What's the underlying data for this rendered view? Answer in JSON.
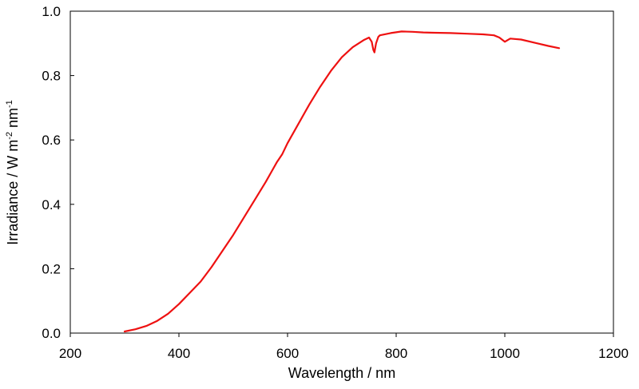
{
  "chart_data": {
    "type": "line",
    "title": "",
    "xlabel": "Wavelength / nm",
    "ylabel": {
      "prefix": "Irradiance / W m",
      "exp1": "-2",
      "middle": " nm",
      "exp2": "-1"
    },
    "xlim": [
      200,
      1200
    ],
    "ylim": [
      0,
      1.0
    ],
    "xticks": [
      {
        "value": 200,
        "label": "200"
      },
      {
        "value": 400,
        "label": "400"
      },
      {
        "value": 600,
        "label": "600"
      },
      {
        "value": 800,
        "label": "800"
      },
      {
        "value": 1000,
        "label": "1000"
      },
      {
        "value": 1200,
        "label": "1200"
      }
    ],
    "yticks": [
      {
        "value": 0.0,
        "label": "0.0"
      },
      {
        "value": 0.2,
        "label": "0.2"
      },
      {
        "value": 0.4,
        "label": "0.4"
      },
      {
        "value": 0.6,
        "label": "0.6"
      },
      {
        "value": 0.8,
        "label": "0.8"
      },
      {
        "value": 1.0,
        "label": "1.0"
      }
    ],
    "grid": false,
    "legend": "none",
    "series": [
      {
        "color": "#ee1111",
        "x": [
          300,
          320,
          340,
          360,
          380,
          400,
          420,
          440,
          460,
          480,
          500,
          520,
          540,
          560,
          570,
          580,
          590,
          600,
          620,
          640,
          660,
          680,
          700,
          720,
          740,
          750,
          755,
          758,
          760,
          763,
          767,
          770,
          790,
          810,
          830,
          850,
          870,
          900,
          930,
          960,
          980,
          990,
          1000,
          1010,
          1030,
          1060,
          1080,
          1100
        ],
        "y": [
          0.005,
          0.012,
          0.022,
          0.038,
          0.06,
          0.09,
          0.125,
          0.16,
          0.205,
          0.255,
          0.305,
          0.36,
          0.415,
          0.47,
          0.5,
          0.53,
          0.555,
          0.59,
          0.65,
          0.71,
          0.765,
          0.815,
          0.857,
          0.888,
          0.91,
          0.918,
          0.905,
          0.88,
          0.872,
          0.9,
          0.92,
          0.925,
          0.932,
          0.937,
          0.936,
          0.934,
          0.933,
          0.932,
          0.93,
          0.928,
          0.925,
          0.918,
          0.905,
          0.915,
          0.912,
          0.9,
          0.892,
          0.885
        ]
      }
    ]
  }
}
